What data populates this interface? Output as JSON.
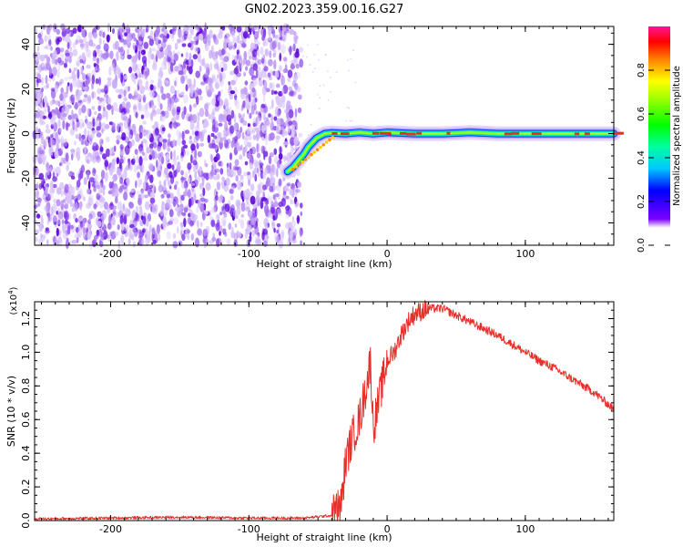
{
  "title": "GN02.2023.359.00.16.G27",
  "colors": {
    "snr_line": "#e8302a",
    "spectrum_scatter": "#7a2cf0",
    "spectrum_track_core": "#e63020"
  },
  "chart_data": [
    {
      "type": "heatmap",
      "name": "spectrogram",
      "xlabel": "Height of straight line (km)",
      "ylabel": "Frequency (Hz)",
      "xlim": [
        -255,
        164
      ],
      "ylim": [
        -50,
        48
      ],
      "xticks": [
        -200,
        -100,
        0,
        100
      ],
      "yticks": [
        -40,
        -20,
        0,
        20,
        40
      ],
      "grid": false,
      "noise_region_x": [
        -255,
        -62
      ],
      "track": {
        "x": [
          -72,
          -68,
          -64,
          -60,
          -57,
          -54,
          -51,
          -48,
          -45,
          -40,
          -30,
          -20,
          -10,
          0,
          20,
          40,
          60,
          80,
          100,
          120,
          140,
          164
        ],
        "y": [
          -17,
          -15,
          -12,
          -9,
          -6,
          -4,
          -2,
          -1,
          0,
          0.3,
          0,
          0.5,
          0,
          0.5,
          0,
          0,
          0.5,
          0,
          0,
          0,
          0,
          0
        ]
      },
      "colorbar": {
        "label": "Normalized spectral amplitude",
        "ticks": [
          "0.0",
          "0.2",
          "0.4",
          "0.6",
          "0.8"
        ],
        "range": [
          0,
          1
        ]
      }
    },
    {
      "type": "line",
      "name": "snr",
      "xlabel": "Height of straight line (km)",
      "ylabel": "SNR (10 * v/v)",
      "multiplier_label": "(x10",
      "multiplier_exp": "4",
      "multiplier_close": ")",
      "xlim": [
        -255,
        164
      ],
      "ylim": [
        0,
        1.3
      ],
      "xticks": [
        -200,
        -100,
        0,
        100
      ],
      "yticks": [
        "0.0",
        "0.2",
        "0.4",
        "0.6",
        "0.8",
        "1.0",
        "1.2"
      ],
      "grid": false,
      "series": [
        {
          "x": [
            -255,
            -200,
            -150,
            -100,
            -60,
            -40,
            -33,
            -30,
            -25,
            -20,
            -15,
            -12,
            -10,
            -5,
            0,
            5,
            10,
            15,
            20,
            30,
            40,
            50,
            60,
            70,
            80,
            90,
            100,
            110,
            120,
            130,
            140,
            150,
            160,
            164
          ],
          "y": [
            0.01,
            0.015,
            0.02,
            0.015,
            0.015,
            0.03,
            0.1,
            0.35,
            0.5,
            0.6,
            0.8,
            0.95,
            0.55,
            0.75,
            0.95,
            1.0,
            1.1,
            1.18,
            1.23,
            1.26,
            1.26,
            1.22,
            1.18,
            1.14,
            1.1,
            1.05,
            1.0,
            0.95,
            0.91,
            0.86,
            0.81,
            0.76,
            0.69,
            0.66
          ]
        }
      ]
    }
  ]
}
